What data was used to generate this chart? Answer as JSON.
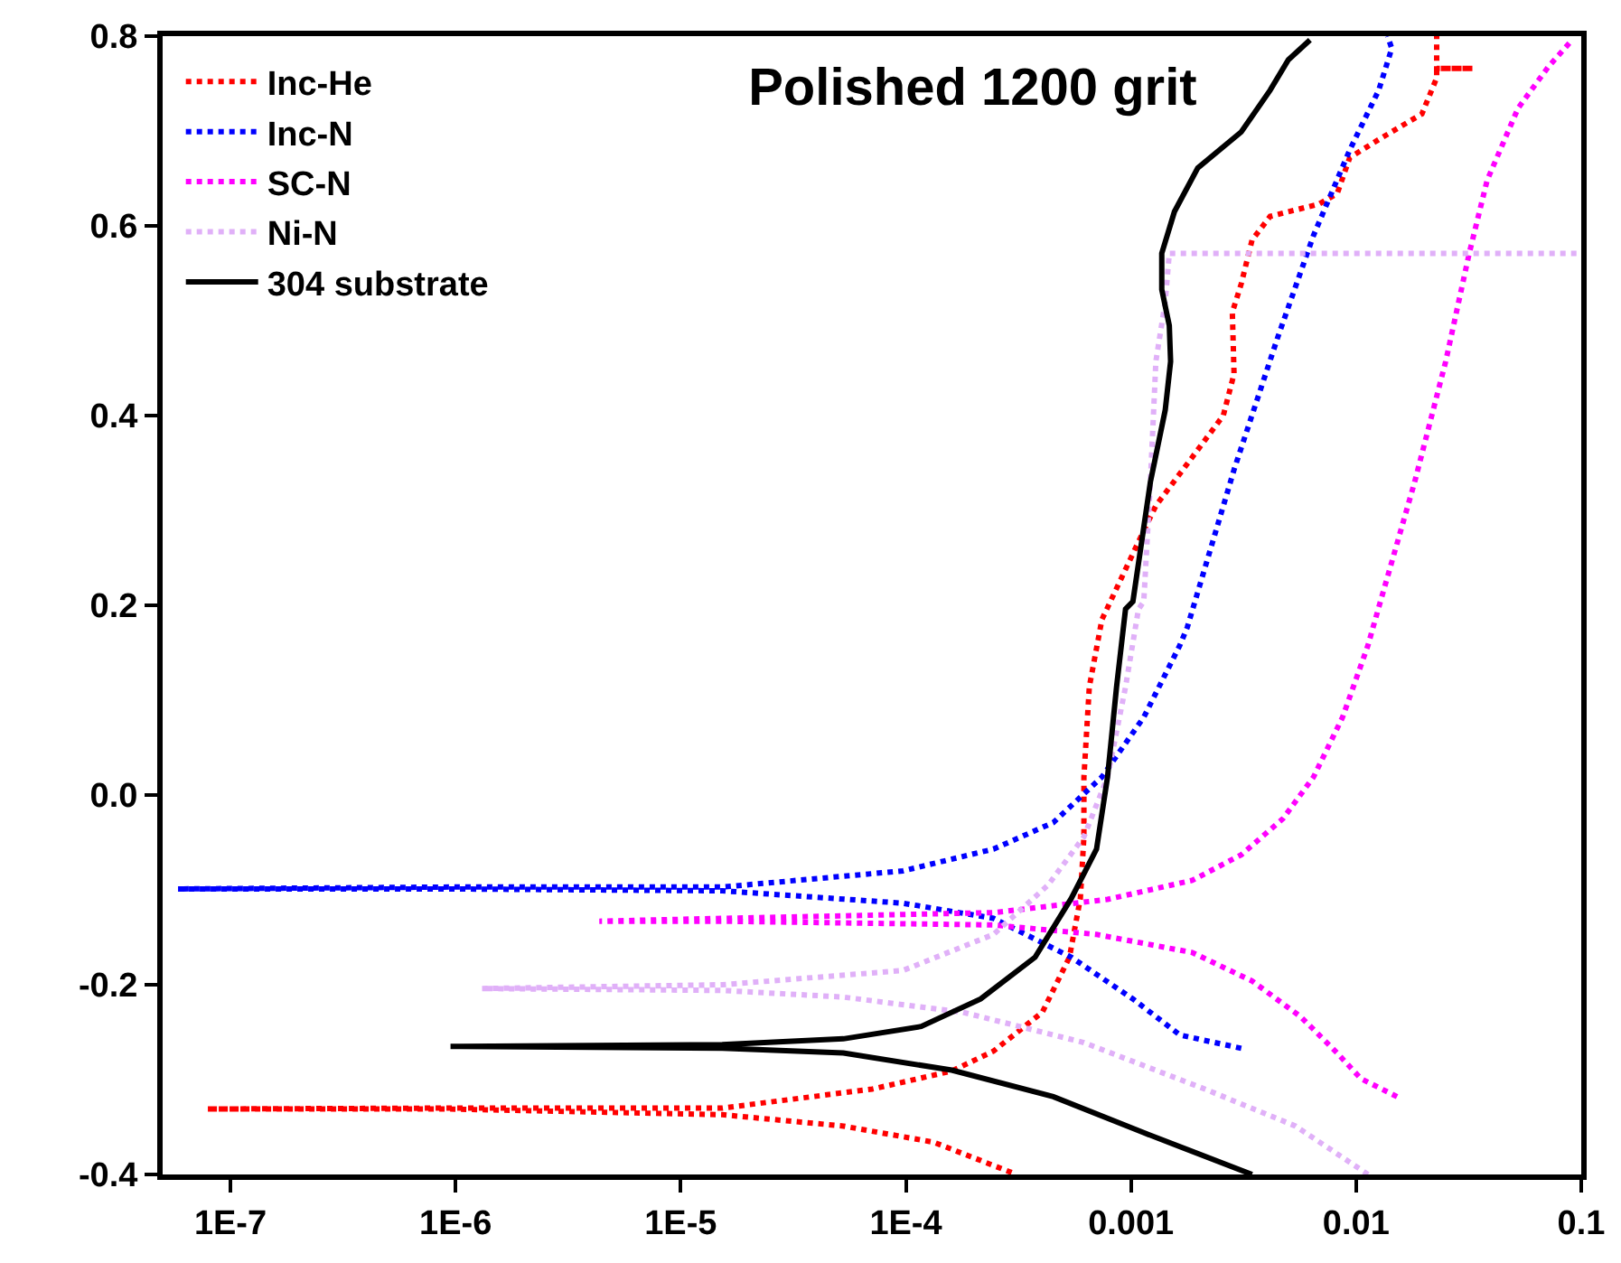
{
  "chart_data": {
    "type": "line",
    "title": "Polished 1200 grit",
    "log": "x",
    "legend": "top left",
    "grid": false,
    "xlim": [
      5e-08,
      0.1
    ],
    "xticks": [
      {
        "value": 1e-07,
        "label": "1E-7"
      },
      {
        "value": 1e-06,
        "label": "1E-6"
      },
      {
        "value": 1e-05,
        "label": "1E-5"
      },
      {
        "value": 0.0001,
        "label": "1E-4"
      },
      0.001,
      0.01,
      0.1
    ],
    "ylim": [
      -0.4,
      0.8
    ],
    "yticks": [
      -0.4,
      -0.2,
      {
        "value": 0,
        "label": "0.0"
      },
      0.2,
      0.4,
      0.6,
      0.8
    ],
    "series": [
      {
        "name": "Inc-He",
        "color": "#ff0000",
        "line_style": "dotted",
        "x": [
          0.000295,
          0.000133,
          5.28e-05,
          1.53e-05,
          9.5e-07,
          7.87e-08,
          9.5e-07,
          1.53e-05,
          7.09e-05,
          0.00016,
          0.000245,
          0.000404,
          0.000533,
          0.000596,
          0.000618,
          0.000618,
          0.000653,
          0.000743,
          0.00108,
          0.00129,
          0.00187,
          0.00257,
          0.00287,
          0.00282,
          0.00309,
          0.00345,
          0.00415,
          0.00684,
          0.00824,
          0.00937,
          0.0126,
          0.0196,
          0.0228,
          0.0228,
          0.033,
          0.0228,
          0.0228
        ],
        "values": [
          -0.398,
          -0.366,
          -0.349,
          -0.337,
          -0.331,
          -0.331,
          -0.33,
          -0.33,
          -0.31,
          -0.291,
          -0.27,
          -0.229,
          -0.171,
          -0.109,
          -0.044,
          0.019,
          0.114,
          0.185,
          0.267,
          0.305,
          0.356,
          0.4,
          0.444,
          0.509,
          0.539,
          0.585,
          0.61,
          0.623,
          0.634,
          0.672,
          0.691,
          0.718,
          0.756,
          0.766,
          0.766,
          0.766,
          0.8
        ]
      },
      {
        "name": "Inc-N",
        "color": "#0000ff",
        "line_style": "dotted",
        "x": [
          0.00309,
          0.00165,
          0.00102,
          0.000543,
          0.000245,
          9.7e-05,
          1.53e-05,
          9.5e-07,
          5.85e-08,
          9.5e-07,
          1.53e-05,
          9.7e-05,
          0.000245,
          0.000452,
          0.000743,
          0.00114,
          0.00165,
          0.00178,
          0.00287,
          0.00448,
          0.00647,
          0.00937,
          0.0126,
          0.0144,
          0.0138
        ],
        "values": [
          -0.267,
          -0.253,
          -0.215,
          -0.171,
          -0.13,
          -0.114,
          -0.101,
          -0.099,
          -0.099,
          -0.097,
          -0.097,
          -0.08,
          -0.057,
          -0.029,
          0.019,
          0.082,
          0.158,
          0.177,
          0.343,
          0.482,
          0.59,
          0.68,
          0.743,
          0.787,
          0.8
        ]
      },
      {
        "name": "SC-N",
        "color": "#ff00ff",
        "line_style": "dotted",
        "x": [
          0.0152,
          0.0105,
          0.00824,
          0.00569,
          0.00345,
          0.00187,
          0.000703,
          0.000245,
          1.53e-05,
          4.35e-06,
          1.53e-05,
          0.000245,
          0.000787,
          0.00187,
          0.00309,
          0.00473,
          0.00647,
          0.00871,
          0.0113,
          0.0119,
          0.0182,
          0.025,
          0.0318,
          0.0382,
          0.0524,
          0.0716,
          0.0912
        ],
        "values": [
          -0.318,
          -0.299,
          -0.272,
          -0.234,
          -0.196,
          -0.166,
          -0.147,
          -0.137,
          -0.133,
          -0.133,
          -0.13,
          -0.124,
          -0.11,
          -0.09,
          -0.063,
          -0.025,
          0.019,
          0.082,
          0.158,
          0.177,
          0.33,
          0.457,
          0.571,
          0.648,
          0.724,
          0.768,
          0.796
        ]
      },
      {
        "name": "Ni-N",
        "color": "#e0b0f8",
        "line_style": "dotted",
        "x": [
          0.0113,
          0.00538,
          0.00213,
          0.000618,
          0.000179,
          5.28e-05,
          1.53e-05,
          1.31e-06,
          1.53e-05,
          9.7e-05,
          0.000245,
          0.000428,
          0.000618,
          0.000787,
          0.000946,
          0.00108,
          0.00114,
          0.00122,
          0.00129,
          0.00142,
          0.00148,
          0.1
        ],
        "values": [
          -0.4,
          -0.349,
          -0.31,
          -0.261,
          -0.229,
          -0.213,
          -0.206,
          -0.204,
          -0.2,
          -0.185,
          -0.147,
          -0.095,
          -0.044,
          0.019,
          0.114,
          0.196,
          0.204,
          0.33,
          0.457,
          0.52,
          0.571,
          0.571
        ]
      },
      {
        "name": "304 substrate",
        "color": "#000000",
        "line_style": "solid",
        "x": [
          0.00345,
          0.00114,
          0.000452,
          0.00016,
          5.28e-05,
          1.53e-05,
          9.5e-07,
          1.53e-05,
          5.28e-05,
          0.000117,
          0.000215,
          0.000375,
          0.000543,
          0.000703,
          0.000787,
          0.000863,
          0.000946,
          0.00102,
          0.00122,
          0.00142,
          0.0015,
          0.00148,
          0.00137,
          0.00137,
          0.00156,
          0.00198,
          0.00309,
          0.00415,
          0.005,
          0.00624
        ],
        "values": [
          -0.4,
          -0.356,
          -0.318,
          -0.29,
          -0.272,
          -0.267,
          -0.265,
          -0.263,
          -0.257,
          -0.244,
          -0.215,
          -0.171,
          -0.109,
          -0.057,
          0.019,
          0.114,
          0.196,
          0.204,
          0.33,
          0.406,
          0.457,
          0.495,
          0.533,
          0.571,
          0.615,
          0.661,
          0.699,
          0.743,
          0.775,
          0.796
        ]
      }
    ]
  }
}
